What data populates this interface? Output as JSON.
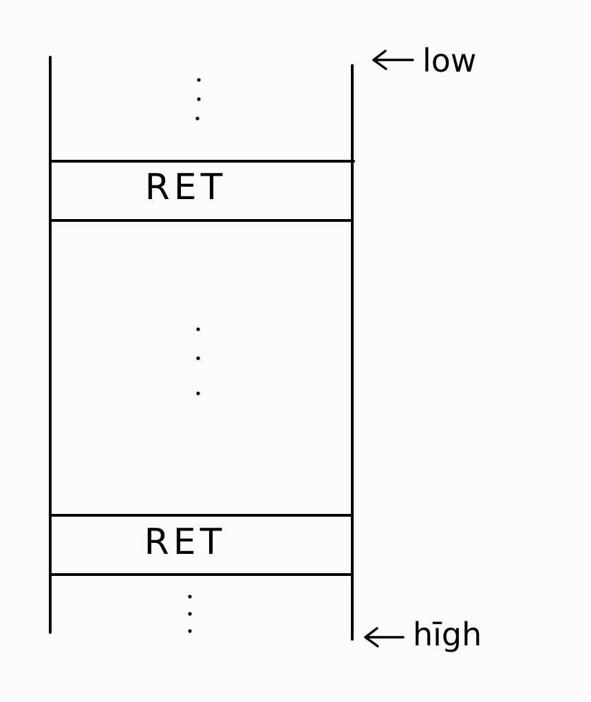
{
  "diagram": {
    "blocks": [
      {
        "label": "RET"
      },
      {
        "label": "RET"
      }
    ],
    "pointers": {
      "low": {
        "label": "low"
      },
      "high": {
        "label": "hīgh"
      }
    }
  },
  "colors": {
    "ink": "#000000",
    "background": "#fbfbfb"
  },
  "icons": {
    "arrow": "left-arrow-icon",
    "ellipsis": "vertical-ellipsis-icon"
  }
}
